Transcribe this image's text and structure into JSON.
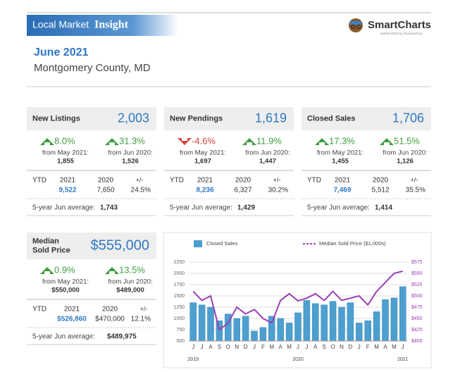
{
  "header": {
    "title_prefix": "Local Market",
    "title_emphasis": "Insight",
    "brand": "SmartCharts",
    "brand_tagline": "Market Stats by ShowingTime"
  },
  "report": {
    "period": "June 2021",
    "area": "Montgomery County, MD"
  },
  "cards": [
    {
      "label": [
        "New Listings"
      ],
      "value": "2,003",
      "changes": [
        {
          "direction": "up",
          "pct": "8.0%",
          "from": "from May 2021:",
          "prior": "1,855"
        },
        {
          "direction": "up",
          "pct": "31.3%",
          "from": "from Jun 2020:",
          "prior": "1,526"
        }
      ],
      "ytd": {
        "label": "YTD",
        "year1": "2021",
        "year2": "2020",
        "diff": "+/-",
        "value1": "9,522",
        "value2": "7,650",
        "pct": "24.5%"
      },
      "avg_label": "5-year Jun average:",
      "avg_value": "1,743"
    },
    {
      "label": [
        "New Pendings"
      ],
      "value": "1,619",
      "changes": [
        {
          "direction": "down",
          "pct": "-4.6%",
          "from": "from May 2021:",
          "prior": "1,697"
        },
        {
          "direction": "up",
          "pct": "11.9%",
          "from": "from Jun 2020:",
          "prior": "1,447"
        }
      ],
      "ytd": {
        "label": "YTD",
        "year1": "2021",
        "year2": "2020",
        "diff": "+/-",
        "value1": "8,236",
        "value2": "6,327",
        "pct": "30.2%"
      },
      "avg_label": "5-year Jun average:",
      "avg_value": "1,429"
    },
    {
      "label": [
        "Closed Sales"
      ],
      "value": "1,706",
      "changes": [
        {
          "direction": "up",
          "pct": "17.3%",
          "from": "from May 2021:",
          "prior": "1,455"
        },
        {
          "direction": "up",
          "pct": "51.5%",
          "from": "from Jun 2020:",
          "prior": "1,126"
        }
      ],
      "ytd": {
        "label": "YTD",
        "year1": "2021",
        "year2": "2020",
        "diff": "+/-",
        "value1": "7,469",
        "value2": "5,512",
        "pct": "35.5%"
      },
      "avg_label": "5-year Jun average:",
      "avg_value": "1,414"
    },
    {
      "label": [
        "Median",
        "Sold Price"
      ],
      "value": "$555,000",
      "changes": [
        {
          "direction": "up",
          "pct": "0.9%",
          "from": "from May 2021:",
          "prior": "$550,000"
        },
        {
          "direction": "up",
          "pct": "13.5%",
          "from": "from Jun 2020:",
          "prior": "$489,000"
        }
      ],
      "ytd": {
        "label": "YTD",
        "year1": "2021",
        "year2": "2020",
        "diff": "+/-",
        "value1": "$526,860",
        "value2": "$470,000",
        "pct": "12.1%"
      },
      "avg_label": "5-year Jun average:",
      "avg_value": "$489,975"
    }
  ],
  "chart": {
    "type": "bar-line",
    "categories": [
      "J",
      "J",
      "A",
      "S",
      "O",
      "N",
      "D",
      "J",
      "F",
      "M",
      "A",
      "M",
      "J",
      "J",
      "A",
      "S",
      "O",
      "N",
      "D",
      "J",
      "F",
      "M",
      "A",
      "M",
      "J"
    ],
    "years": [
      "2019",
      "2020",
      "2021"
    ],
    "series": [
      {
        "name": "Closed Sales",
        "color": "#4d9fd0",
        "values": [
          1350,
          1300,
          1250,
          950,
          1100,
          1000,
          1050,
          720,
          800,
          1050,
          1000,
          900,
          1126,
          1400,
          1330,
          1300,
          1380,
          1250,
          1350,
          900,
          950,
          1150,
          1420,
          1455,
          1706
        ]
      },
      {
        "name": "Median Sold Price ($1,000s)",
        "color": "#9b3fb5",
        "axis": "y2",
        "values": [
          510,
          490,
          500,
          425,
          440,
          475,
          460,
          470,
          450,
          440,
          490,
          505,
          489,
          495,
          505,
          490,
          510,
          490,
          495,
          500,
          480,
          510,
          530,
          550,
          555
        ]
      }
    ],
    "ylim": [
      500,
      2250
    ],
    "yticks": [
      500,
      750,
      1000,
      1250,
      1500,
      1750,
      2000,
      2250
    ],
    "y2lim": [
      400,
      575
    ],
    "y2ticks": [
      {
        "value": 400,
        "label": "$400"
      },
      {
        "value": 425,
        "label": "$425"
      },
      {
        "value": 450,
        "label": "$450"
      },
      {
        "value": 475,
        "label": "$475"
      },
      {
        "value": 500,
        "label": "$500"
      },
      {
        "value": 525,
        "label": "$525"
      },
      {
        "value": 550,
        "label": "$550"
      },
      {
        "value": 575,
        "label": "$575"
      }
    ],
    "grid": true
  }
}
